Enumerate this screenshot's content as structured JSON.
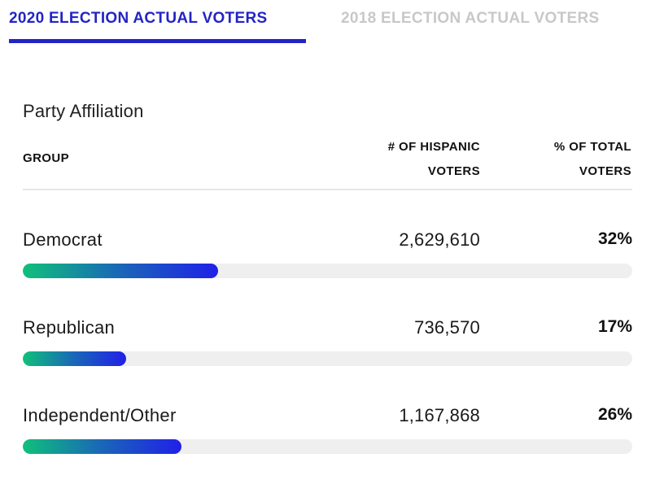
{
  "tabs": {
    "active_label": "2020 ELECTION ACTUAL VOTERS",
    "inactive_label": "2018 ELECTION ACTUAL VOTERS"
  },
  "section": {
    "title": "Party Affiliation"
  },
  "table": {
    "headers": {
      "group": "GROUP",
      "voters_line1": "# OF HISPANIC",
      "voters_line2": "VOTERS",
      "pct_line1": "% OF TOTAL",
      "pct_line2": "VOTERS"
    },
    "rows": [
      {
        "group": "Democrat",
        "voters": "2,629,610",
        "pct": "32%",
        "bar_fraction": 0.32
      },
      {
        "group": "Republican",
        "voters": "736,570",
        "pct": "17%",
        "bar_fraction": 0.17
      },
      {
        "group": "Independent/Other",
        "voters": "1,167,868",
        "pct": "26%",
        "bar_fraction": 0.26
      }
    ]
  },
  "colors": {
    "accent": "#2324c6",
    "inactive_tab": "#c8c8c8",
    "bar_track": "#efefef",
    "bar_gradient_start": "#0fc07b",
    "bar_gradient_end": "#2020e8"
  }
}
